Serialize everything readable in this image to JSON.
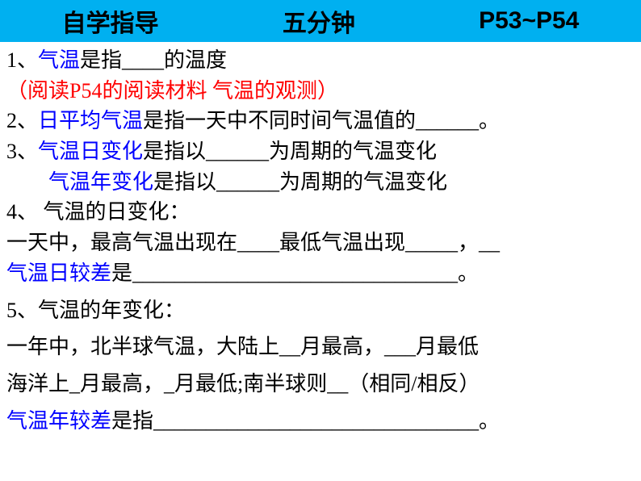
{
  "header": {
    "title1": "自学指导",
    "title2": "五分钟",
    "title3": "P53~P54"
  },
  "lines": {
    "l1_num": "1、",
    "l1_term": "气温",
    "l1_text": "是指____的温度",
    "l2_note": "（阅读P54的阅读材料 气温的观测）",
    "l3_num": "2、",
    "l3_term": "日平均气温",
    "l3_text": "是指一天中不同时间气温值的______。",
    "l4_num": "3、",
    "l4_term": "气温日变化",
    "l4_text": "是指以______为周期的气温变化",
    "l5_indent": "　　",
    "l5_term": "气温年变化",
    "l5_text": "是指以______为周期的气温变化",
    "l6_num": "4、 ",
    "l6_text": "气温的日变化：",
    "l7_text": "一天中，最高气温出现在____最低气温出现_____，__",
    "l8_term": "气温日较差",
    "l8_text": "是_______________________________。",
    "l9_num": "5、",
    "l9_text": "气温的年变化：",
    "l10_text": "一年中，北半球气温，大陆上__月最高，___月最低",
    "l11_text": "海洋上_月最高，_月最低;南半球则__（相同/相反）",
    "l12_term": "气温年较差",
    "l12_text": "是指_______________________________。"
  },
  "styles": {
    "header_bg": "#00b0f0",
    "blue_color": "#0000ff",
    "red_color": "#ff0000",
    "black_color": "#000000",
    "font_size": 26,
    "header_font_size": 30
  }
}
